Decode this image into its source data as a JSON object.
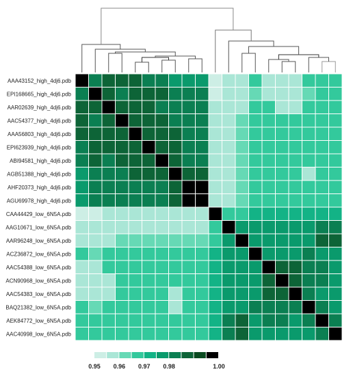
{
  "chart_data": {
    "type": "heatmap",
    "title": "",
    "labels": [
      "AAA43152_high_4dj6.pdb",
      "EPI168665_high_4dj6.pdb",
      "AAR02639_high_4dj6.pdb",
      "AAC54377_high_4dj6.pdb",
      "AAA56803_high_4dj6.pdb",
      "EPI623939_high_4dj6.pdb",
      "ABI94581_high_4dj6.pdb",
      "AGB51388_high_4dj6.pdb",
      "AHF20373_high_4dj6.pdb",
      "AGU69978_high_4dj6.pdb",
      "CAA44429_low_6N5A.pdb",
      "AAG10671_low_6N5A.pdb",
      "AAR96248_low_6N5A.pdb",
      "ACZ36872_low_6N5A.pdb",
      "AAC54388_low_6N5A.pdb",
      "ACN90968_low_6N5A.pdb",
      "AAC54383_low_6N5A.pdb",
      "BAQ21382_low_6N5A.pdb",
      "AEK84772_low_6N5A.pdb",
      "AAC40998_low_6N5A.pdb"
    ],
    "values": [
      [
        1.0,
        0.98,
        0.985,
        0.985,
        0.985,
        0.98,
        0.98,
        0.975,
        0.975,
        0.975,
        0.95,
        0.955,
        0.955,
        0.965,
        0.955,
        0.955,
        0.955,
        0.965,
        0.965,
        0.965
      ],
      [
        0.98,
        1.0,
        0.985,
        0.98,
        0.985,
        0.985,
        0.985,
        0.98,
        0.98,
        0.98,
        0.95,
        0.955,
        0.955,
        0.96,
        0.955,
        0.955,
        0.955,
        0.96,
        0.965,
        0.965
      ],
      [
        0.985,
        0.985,
        1.0,
        0.985,
        0.985,
        0.985,
        0.98,
        0.98,
        0.98,
        0.98,
        0.955,
        0.955,
        0.955,
        0.965,
        0.965,
        0.955,
        0.955,
        0.965,
        0.965,
        0.965
      ],
      [
        0.985,
        0.98,
        0.985,
        1.0,
        0.985,
        0.985,
        0.985,
        0.98,
        0.98,
        0.98,
        0.955,
        0.955,
        0.96,
        0.965,
        0.965,
        0.965,
        0.965,
        0.965,
        0.965,
        0.965
      ],
      [
        0.985,
        0.985,
        0.985,
        0.985,
        1.0,
        0.985,
        0.985,
        0.985,
        0.98,
        0.98,
        0.955,
        0.955,
        0.96,
        0.965,
        0.965,
        0.965,
        0.965,
        0.965,
        0.965,
        0.965
      ],
      [
        0.98,
        0.985,
        0.985,
        0.985,
        0.985,
        1.0,
        0.985,
        0.985,
        0.98,
        0.98,
        0.955,
        0.955,
        0.96,
        0.965,
        0.965,
        0.965,
        0.965,
        0.965,
        0.965,
        0.965
      ],
      [
        0.98,
        0.985,
        0.98,
        0.985,
        0.985,
        0.985,
        1.0,
        0.985,
        0.98,
        0.98,
        0.955,
        0.955,
        0.96,
        0.965,
        0.965,
        0.965,
        0.965,
        0.965,
        0.965,
        0.965
      ],
      [
        0.975,
        0.98,
        0.98,
        0.98,
        0.985,
        0.985,
        0.985,
        1.0,
        0.985,
        0.985,
        0.955,
        0.955,
        0.96,
        0.965,
        0.965,
        0.965,
        0.965,
        0.955,
        0.965,
        0.965
      ],
      [
        0.975,
        0.98,
        0.98,
        0.98,
        0.98,
        0.98,
        0.98,
        0.985,
        1.0,
        0.995,
        0.955,
        0.955,
        0.96,
        0.965,
        0.965,
        0.965,
        0.965,
        0.965,
        0.965,
        0.965
      ],
      [
        0.975,
        0.98,
        0.98,
        0.98,
        0.98,
        0.98,
        0.98,
        0.985,
        0.995,
        1.0,
        0.955,
        0.955,
        0.96,
        0.965,
        0.965,
        0.965,
        0.965,
        0.965,
        0.965,
        0.965
      ],
      [
        0.95,
        0.95,
        0.955,
        0.955,
        0.955,
        0.955,
        0.955,
        0.955,
        0.955,
        0.955,
        1.0,
        0.965,
        0.965,
        0.97,
        0.97,
        0.97,
        0.97,
        0.97,
        0.97,
        0.97
      ],
      [
        0.955,
        0.955,
        0.955,
        0.955,
        0.955,
        0.955,
        0.955,
        0.955,
        0.955,
        0.955,
        0.965,
        1.0,
        0.975,
        0.975,
        0.975,
        0.975,
        0.975,
        0.975,
        0.98,
        0.98
      ],
      [
        0.955,
        0.955,
        0.955,
        0.96,
        0.96,
        0.96,
        0.96,
        0.96,
        0.96,
        0.96,
        0.965,
        0.975,
        1.0,
        0.975,
        0.975,
        0.975,
        0.975,
        0.975,
        0.985,
        0.985
      ],
      [
        0.965,
        0.96,
        0.965,
        0.965,
        0.965,
        0.965,
        0.965,
        0.965,
        0.965,
        0.965,
        0.97,
        0.975,
        0.975,
        1.0,
        0.975,
        0.975,
        0.975,
        0.98,
        0.975,
        0.975
      ],
      [
        0.955,
        0.955,
        0.965,
        0.965,
        0.965,
        0.965,
        0.965,
        0.965,
        0.965,
        0.965,
        0.97,
        0.975,
        0.975,
        0.975,
        1.0,
        0.985,
        0.985,
        0.98,
        0.98,
        0.975
      ],
      [
        0.955,
        0.955,
        0.955,
        0.965,
        0.965,
        0.965,
        0.965,
        0.965,
        0.965,
        0.965,
        0.97,
        0.975,
        0.975,
        0.975,
        0.985,
        1.0,
        0.985,
        0.98,
        0.98,
        0.975
      ],
      [
        0.955,
        0.955,
        0.955,
        0.965,
        0.965,
        0.965,
        0.965,
        0.955,
        0.965,
        0.965,
        0.97,
        0.975,
        0.975,
        0.975,
        0.985,
        0.985,
        1.0,
        0.98,
        0.975,
        0.975
      ],
      [
        0.965,
        0.96,
        0.965,
        0.965,
        0.965,
        0.965,
        0.965,
        0.955,
        0.965,
        0.965,
        0.97,
        0.975,
        0.975,
        0.98,
        0.98,
        0.98,
        0.98,
        1.0,
        0.98,
        0.975
      ],
      [
        0.965,
        0.965,
        0.965,
        0.965,
        0.965,
        0.965,
        0.965,
        0.965,
        0.965,
        0.965,
        0.97,
        0.98,
        0.985,
        0.975,
        0.98,
        0.98,
        0.975,
        0.98,
        1.0,
        0.98
      ],
      [
        0.965,
        0.965,
        0.965,
        0.965,
        0.965,
        0.965,
        0.965,
        0.965,
        0.965,
        0.965,
        0.97,
        0.98,
        0.985,
        0.975,
        0.975,
        0.975,
        0.975,
        0.975,
        0.98,
        1.0
      ]
    ],
    "color_scale": {
      "min": 0.95,
      "max": 1.0,
      "steps": [
        0.95,
        0.955,
        0.96,
        0.965,
        0.97,
        0.975,
        0.98,
        0.985,
        0.99,
        0.995
      ],
      "colors": [
        "#cdeee5",
        "#aae6d6",
        "#66d9b5",
        "#33c99c",
        "#13b386",
        "#0a9a6c",
        "#0b7f52",
        "#0d6437",
        "#0a4a20",
        "#000000"
      ],
      "tick_labels": [
        "0.95",
        "0.96",
        "0.97",
        "0.98",
        "1.00"
      ],
      "tick_values": [
        0.95,
        0.96,
        0.97,
        0.98,
        1.0
      ]
    },
    "dendrogram": "top",
    "grid": true
  }
}
